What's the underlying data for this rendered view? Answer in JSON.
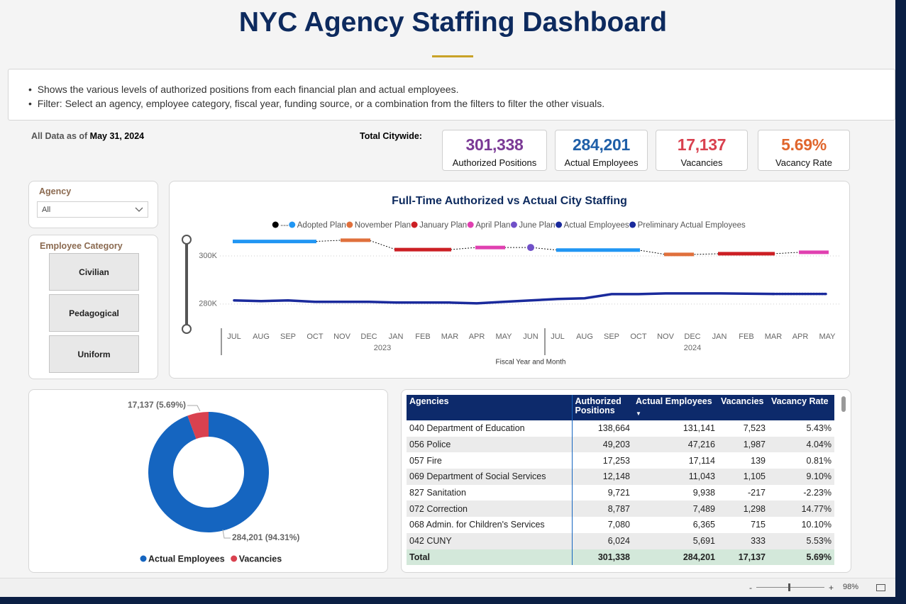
{
  "header": {
    "title": "NYC Agency Staffing Dashboard"
  },
  "notes": [
    "Shows the various levels of authorized positions from each financial plan and actual employees.",
    "Filter: Select an agency, employee category, fiscal year, funding source, or a combination from the filters to filter the other visuals."
  ],
  "as_of": {
    "label": "All Data as of",
    "date": "May 31, 2024"
  },
  "kpis": {
    "label": "Total Citywide:",
    "items": [
      {
        "value": "301,338",
        "label": "Authorized Positions",
        "color": "#7b3a96"
      },
      {
        "value": "284,201",
        "label": "Actual Employees",
        "color": "#1f5fa8"
      },
      {
        "value": "17,137",
        "label": "Vacancies",
        "color": "#d9414f"
      },
      {
        "value": "5.69%",
        "label": "Vacancy Rate",
        "color": "#e0662d"
      }
    ]
  },
  "filters": {
    "agency": {
      "label": "Agency",
      "value": "All"
    },
    "employee_category": {
      "label": "Employee Category",
      "options": [
        "Civilian",
        "Pedagogical",
        "Uniform"
      ]
    }
  },
  "line_chart": {
    "type": "line",
    "title": "Full-Time Authorized vs Actual City Staffing",
    "x_label": "Fiscal Year and Month",
    "categories": [
      "JUL",
      "AUG",
      "SEP",
      "OCT",
      "NOV",
      "DEC",
      "JAN",
      "FEB",
      "MAR",
      "APR",
      "MAY",
      "JUN",
      "JUL",
      "AUG",
      "SEP",
      "OCT",
      "NOV",
      "DEC",
      "JAN",
      "FEB",
      "MAR",
      "APR",
      "MAY"
    ],
    "years": [
      "2023",
      "2024"
    ],
    "ylim": [
      272000,
      310000
    ],
    "yticks": [
      {
        "value": 280000,
        "label": "280K"
      },
      {
        "value": 300000,
        "label": "300K"
      }
    ],
    "grid": true,
    "series": [
      {
        "name": "---",
        "color": "#000000",
        "dashed": true,
        "values": [
          306000,
          306000,
          306000,
          306000,
          306500,
          306500,
          302600,
          302600,
          302600,
          303500,
          303500,
          303500,
          302400,
          302400,
          302400,
          302400,
          300600,
          300600,
          300900,
          300900,
          300900,
          301500,
          301500
        ]
      },
      {
        "name": "Adopted Plan",
        "color": "#2196f3",
        "values": [
          306000,
          306000,
          306000,
          306000,
          null,
          null,
          null,
          null,
          null,
          null,
          null,
          null,
          302400,
          302400,
          302400,
          302400,
          null,
          null,
          null,
          null,
          null,
          null,
          null
        ]
      },
      {
        "name": "November Plan",
        "color": "#e0703c",
        "values": [
          null,
          null,
          null,
          null,
          306500,
          306500,
          null,
          null,
          null,
          null,
          null,
          null,
          null,
          null,
          null,
          null,
          300600,
          300600,
          null,
          null,
          null,
          null,
          null
        ]
      },
      {
        "name": "January Plan",
        "color": "#cc1f24",
        "values": [
          null,
          null,
          null,
          null,
          null,
          null,
          302600,
          302600,
          302600,
          null,
          null,
          null,
          null,
          null,
          null,
          null,
          null,
          null,
          300900,
          300900,
          300900,
          null,
          null
        ]
      },
      {
        "name": "April Plan",
        "color": "#e040b0",
        "values": [
          null,
          null,
          null,
          null,
          null,
          null,
          null,
          null,
          null,
          303500,
          303500,
          null,
          null,
          null,
          null,
          null,
          null,
          null,
          null,
          null,
          null,
          301500,
          301500
        ]
      },
      {
        "name": "June Plan",
        "color": "#7050c8",
        "values": [
          null,
          null,
          null,
          null,
          null,
          null,
          null,
          null,
          null,
          null,
          null,
          303500,
          null,
          null,
          null,
          null,
          null,
          null,
          null,
          null,
          null,
          null,
          null
        ]
      },
      {
        "name": "Actual Employees",
        "color": "#1a2a9c",
        "values": [
          281500,
          281200,
          281500,
          280900,
          280900,
          280900,
          280600,
          280600,
          280600,
          280300,
          280900,
          281500,
          282100,
          282400,
          284100,
          284100,
          284400,
          284400,
          284400,
          284300,
          284200,
          null,
          null
        ]
      },
      {
        "name": "Preliminary Actual Employees",
        "color": "#1a2a9c",
        "dashed": true,
        "values": [
          null,
          null,
          null,
          null,
          null,
          null,
          null,
          null,
          null,
          null,
          null,
          null,
          null,
          null,
          null,
          null,
          null,
          null,
          null,
          null,
          284200,
          284200,
          284200
        ]
      }
    ]
  },
  "donut_chart": {
    "type": "pie",
    "categories": [
      "Actual Employees",
      "Vacancies"
    ],
    "values": [
      284201,
      17137
    ],
    "value_labels": [
      "284,201 (94.31%)",
      "17,137 (5.69%)"
    ],
    "colors": [
      "#1565c0",
      "#d9414f"
    ]
  },
  "table": {
    "columns": [
      "Agencies",
      "Authorized Positions",
      "Actual Employees",
      "Vacancies",
      "Vacancy Rate"
    ],
    "rows": [
      [
        "040 Department of Education",
        "138,664",
        "131,141",
        "7,523",
        "5.43%"
      ],
      [
        "056 Police",
        "49,203",
        "47,216",
        "1,987",
        "4.04%"
      ],
      [
        "057 Fire",
        "17,253",
        "17,114",
        "139",
        "0.81%"
      ],
      [
        "069 Department of Social Services",
        "12,148",
        "11,043",
        "1,105",
        "9.10%"
      ],
      [
        "827 Sanitation",
        "9,721",
        "9,938",
        "-217",
        "-2.23%"
      ],
      [
        "072 Correction",
        "8,787",
        "7,489",
        "1,298",
        "14.77%"
      ],
      [
        "068 Admin. for Children's Services",
        "7,080",
        "6,365",
        "715",
        "10.10%"
      ],
      [
        "042 CUNY",
        "6,024",
        "5,691",
        "333",
        "5.53%"
      ]
    ],
    "total": [
      "Total",
      "301,338",
      "284,201",
      "17,137",
      "5.69%"
    ]
  },
  "footer": {
    "zoom_out": "-",
    "zoom_in": "+",
    "zoom": "98%"
  }
}
